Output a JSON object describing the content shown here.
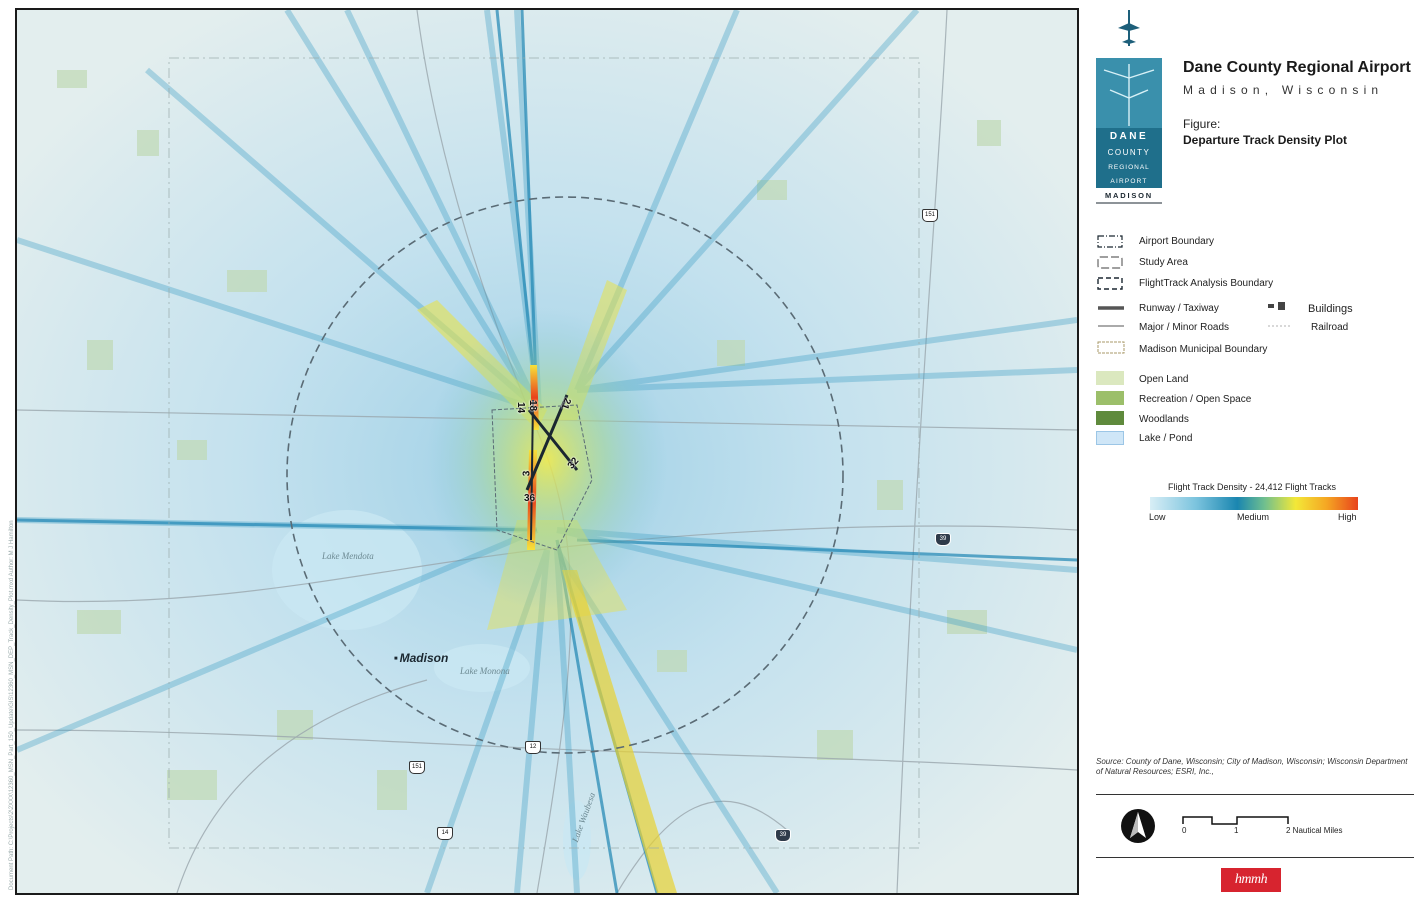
{
  "document_path": "Document Path: C:\\Projects\\2\\2XXX\\12360_MSN_Part_150_Update\\GIS\\12360_MSN_DEP_Track_Density_Plot.mxd  Author: M J Hamilton",
  "map": {
    "city_label": "Madison",
    "lake_labels": [
      "Lake Mendota",
      "Lake Monona",
      "Lake Waubesa"
    ],
    "runway_labels": [
      "18",
      "14",
      "21",
      "3",
      "32",
      "36"
    ],
    "route_shields": [
      {
        "route": "151",
        "type": "us"
      },
      {
        "route": "151",
        "type": "us"
      },
      {
        "route": "12",
        "type": "us"
      },
      {
        "route": "14",
        "type": "us"
      },
      {
        "route": "39",
        "type": "interstate"
      },
      {
        "route": "39",
        "type": "interstate"
      }
    ]
  },
  "logo": {
    "lines": [
      "DANE",
      "COUNTY",
      "REGIONAL",
      "AIRPORT",
      "MADISON"
    ]
  },
  "header": {
    "title": "Dane County Regional Airport",
    "subtitle": "Madison, Wisconsin",
    "figure_label": "Figure:",
    "figure_name": "Departure Track Density Plot"
  },
  "legend": {
    "airport_boundary": "Airport Boundary",
    "study_area": "Study Area",
    "flighttrack_boundary": "FlightTrack Analysis Boundary",
    "runway_taxiway": "Runway / Taxiway",
    "major_minor_roads": "Major / Minor Roads",
    "buildings": "Buildings",
    "railroad": "Railroad",
    "municipal_boundary": "Madison Municipal Boundary",
    "open_land": "Open Land",
    "recreation": "Recreation / Open Space",
    "woodlands": "Woodlands",
    "lake_pond": "Lake / Pond",
    "colors": {
      "open_land": "#dbe8bf",
      "recreation": "#9cbf6a",
      "woodlands": "#5f8a3c",
      "lake": "#cfe6f7"
    }
  },
  "density_scale": {
    "title": "Flight Track Density - 24,412 Flight Tracks",
    "low": "Low",
    "medium": "Medium",
    "high": "High"
  },
  "source": "Source: County of Dane, Wisconsin; City of Madison, Wisconsin; Wisconsin Department of Natural Resources; ESRI, Inc.,",
  "scale": {
    "tick0": "0",
    "tick1": "1",
    "tick2": "2 Nautical Miles"
  },
  "brand": "hmmh"
}
